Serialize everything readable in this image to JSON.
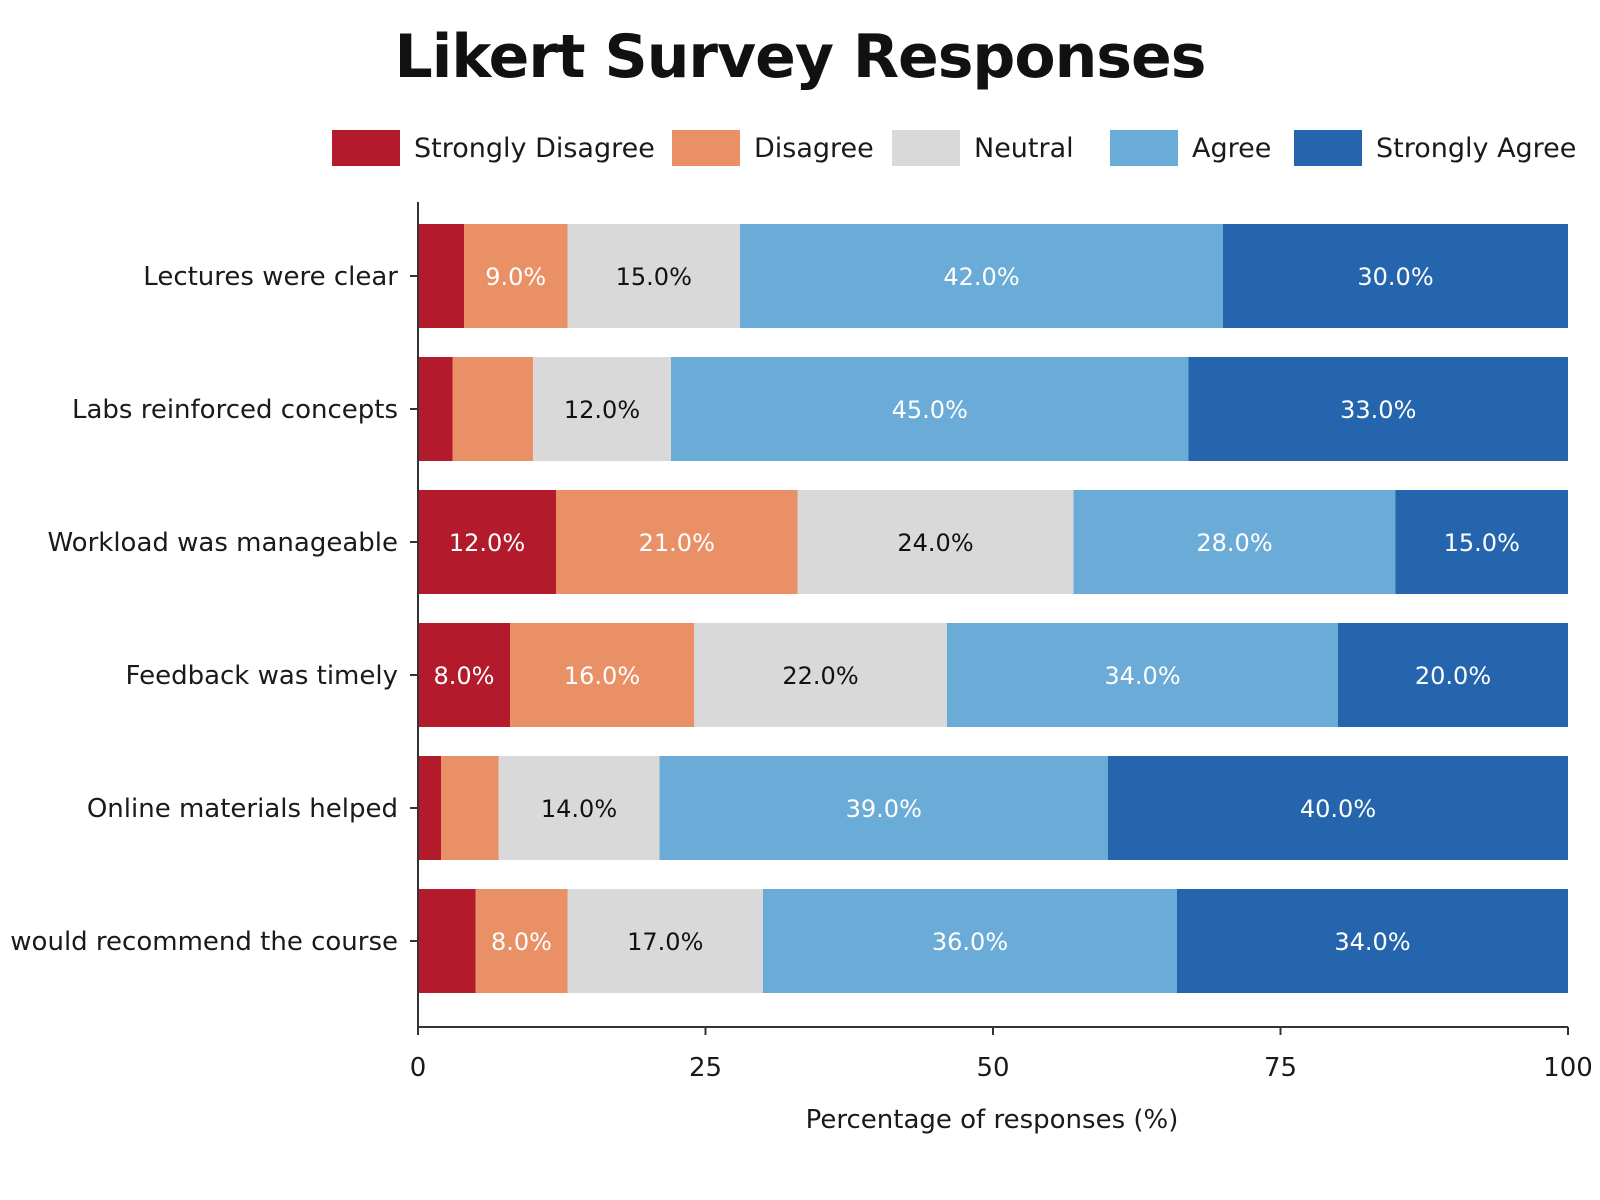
{
  "chart_data": {
    "type": "bar",
    "orientation": "horizontal",
    "stacked": true,
    "title": "Likert Survey Responses",
    "xlabel": "Percentage of responses (%)",
    "ylabel": "",
    "xlim": [
      0,
      100
    ],
    "x_ticks": [
      "0",
      "25",
      "50",
      "75",
      "100"
    ],
    "legend_position": "top",
    "grid": false,
    "categories": [
      "Lectures were clear",
      "Labs reinforced concepts",
      "Workload was manageable",
      "Feedback was timely",
      "Online materials helped",
      "I would recommend the course"
    ],
    "series": [
      {
        "name": "Strongly Disagree",
        "color": "#b31b2c",
        "label_color": "#ffffff",
        "values": [
          4,
          3,
          12,
          8,
          2,
          5
        ],
        "labels": [
          "",
          "",
          "12.0%",
          "8.0%",
          "",
          ""
        ]
      },
      {
        "name": "Disagree",
        "color": "#ea9066",
        "label_color": "#ffffff",
        "values": [
          9,
          7,
          21,
          16,
          5,
          8
        ],
        "labels": [
          "9.0%",
          "",
          "21.0%",
          "16.0%",
          "",
          "8.0%"
        ]
      },
      {
        "name": "Neutral",
        "color": "#d9d9d9",
        "label_color": "#111111",
        "values": [
          15,
          12,
          24,
          22,
          14,
          17
        ],
        "labels": [
          "15.0%",
          "12.0%",
          "24.0%",
          "22.0%",
          "14.0%",
          "17.0%"
        ]
      },
      {
        "name": "Agree",
        "color": "#6aabd7",
        "label_color": "#ffffff",
        "values": [
          42,
          45,
          28,
          34,
          39,
          36
        ],
        "labels": [
          "42.0%",
          "45.0%",
          "28.0%",
          "34.0%",
          "39.0%",
          "36.0%"
        ]
      },
      {
        "name": "Strongly Agree",
        "color": "#2565ad",
        "label_color": "#ffffff",
        "values": [
          30,
          33,
          15,
          20,
          40,
          34
        ],
        "labels": [
          "30.0%",
          "33.0%",
          "15.0%",
          "20.0%",
          "40.0%",
          "34.0%"
        ]
      }
    ]
  }
}
